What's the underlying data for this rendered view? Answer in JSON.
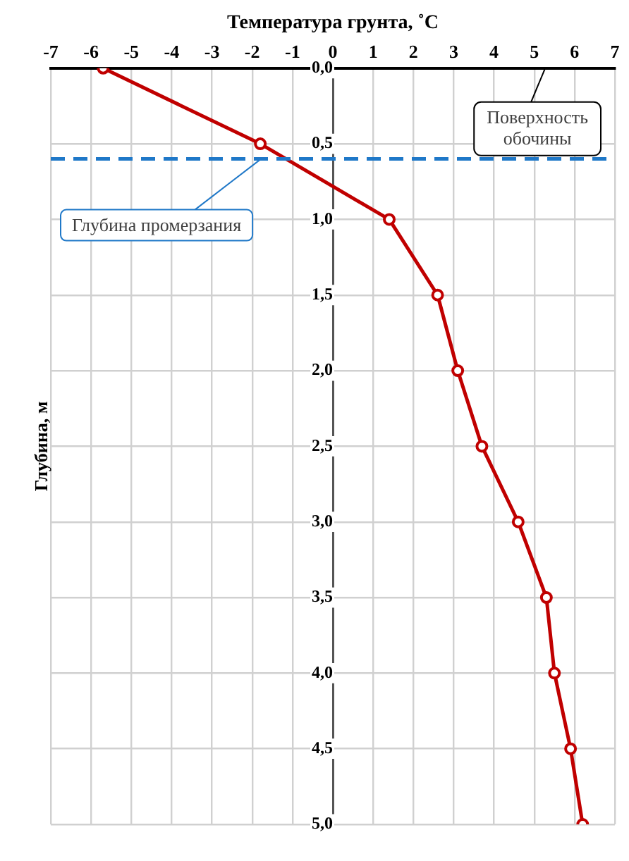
{
  "chart_data": {
    "type": "line",
    "xlabel": "Температура грунта, ˚С",
    "ylabel": "Глубина, м",
    "series": [
      {
        "color": "#c00000",
        "x": [
          -5.7,
          -1.8,
          1.4,
          2.6,
          3.1,
          3.7,
          4.6,
          5.3,
          5.5,
          5.9,
          6.2
        ],
        "values": [
          0,
          0.5,
          1,
          1.5,
          2,
          2.5,
          3,
          3.5,
          4,
          4.5,
          5
        ]
      }
    ],
    "xlim": [
      -7,
      7
    ],
    "xticks": [
      -7,
      -6,
      -5,
      -4,
      -3,
      -2,
      -1,
      0,
      1,
      2,
      3,
      4,
      5,
      6,
      7
    ],
    "ylim": [
      5,
      0
    ],
    "yticks": [
      {
        "value": 0,
        "label": "0,0"
      },
      {
        "value": 0.5,
        "label": "0,5"
      },
      {
        "value": 1,
        "label": "1,0"
      },
      {
        "value": 1.5,
        "label": "1,5"
      },
      {
        "value": 2,
        "label": "2,0"
      },
      {
        "value": 2.5,
        "label": "2,5"
      },
      {
        "value": 3,
        "label": "3,0"
      },
      {
        "value": 3.5,
        "label": "3,5"
      },
      {
        "value": 4,
        "label": "4,0"
      },
      {
        "value": 4.5,
        "label": "4,5"
      },
      {
        "value": 5,
        "label": "5,0"
      }
    ],
    "ref_lines": [
      {
        "axis": "y",
        "value": 0.6,
        "label": "Глубина промерзания",
        "color": "#1f78c8",
        "line_style": "dashed"
      }
    ],
    "annotations": [
      "Поверхность обочины"
    ],
    "grid": true,
    "marker": "circle",
    "line_style": "solid"
  }
}
